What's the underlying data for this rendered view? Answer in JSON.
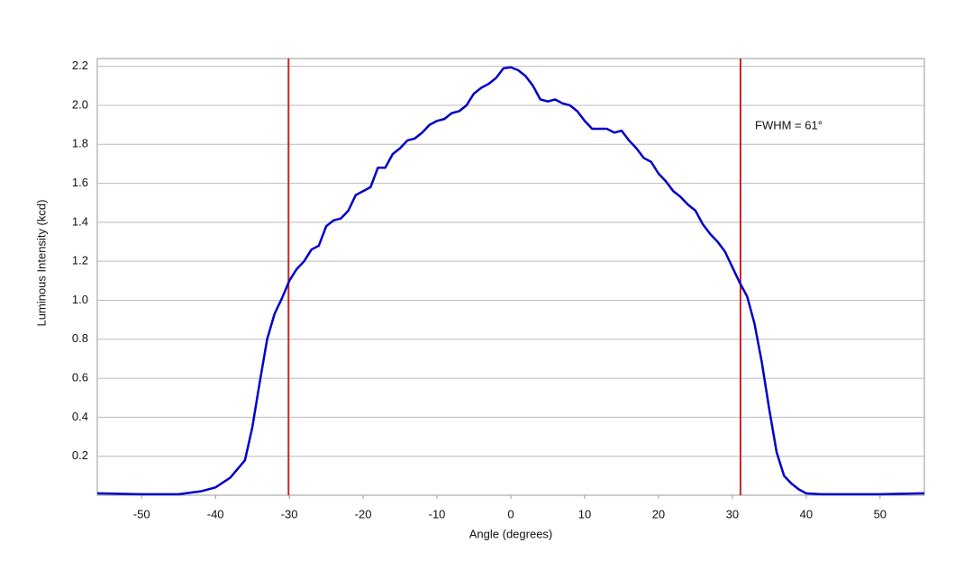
{
  "chart_data": {
    "type": "line",
    "xlabel": "Angle (degrees)",
    "ylabel": "Luminous Intensity (kcd)",
    "annotation": "FWHM = 61°",
    "x": [
      -56,
      -50,
      -45,
      -42,
      -40,
      -38,
      -36,
      -35,
      -34,
      -33,
      -32,
      -31,
      -30,
      -29,
      -28,
      -27,
      -26,
      -25,
      -24,
      -23,
      -22,
      -21,
      -20,
      -19,
      -18,
      -17,
      -16,
      -15,
      -14,
      -13,
      -12,
      -11,
      -10,
      -9,
      -8,
      -7,
      -6,
      -5,
      -4,
      -3,
      -2,
      -1,
      0,
      1,
      2,
      3,
      4,
      5,
      6,
      7,
      8,
      9,
      10,
      11,
      12,
      13,
      14,
      15,
      16,
      17,
      18,
      19,
      20,
      21,
      22,
      23,
      24,
      25,
      26,
      27,
      28,
      29,
      30,
      31,
      32,
      33,
      34,
      35,
      36,
      37,
      38,
      39,
      40,
      42,
      50,
      56
    ],
    "series": [
      {
        "color": "#0000cc",
        "values": [
          0.01,
          0.005,
          0.005,
          0.02,
          0.04,
          0.09,
          0.18,
          0.35,
          0.58,
          0.8,
          0.93,
          1.01,
          1.1,
          1.16,
          1.2,
          1.26,
          1.28,
          1.38,
          1.41,
          1.42,
          1.46,
          1.54,
          1.56,
          1.58,
          1.68,
          1.68,
          1.75,
          1.78,
          1.82,
          1.83,
          1.86,
          1.9,
          1.92,
          1.93,
          1.96,
          1.97,
          2.0,
          2.06,
          2.09,
          2.11,
          2.14,
          2.19,
          2.195,
          2.18,
          2.15,
          2.1,
          2.03,
          2.02,
          2.03,
          2.01,
          2.0,
          1.97,
          1.92,
          1.88,
          1.88,
          1.88,
          1.86,
          1.87,
          1.82,
          1.78,
          1.73,
          1.71,
          1.65,
          1.61,
          1.56,
          1.53,
          1.49,
          1.46,
          1.39,
          1.34,
          1.3,
          1.25,
          1.17,
          1.09,
          1.02,
          0.88,
          0.68,
          0.44,
          0.22,
          0.1,
          0.06,
          0.03,
          0.01,
          0.005,
          0.005,
          0.01
        ]
      }
    ],
    "markers": [
      -30.1,
      31.1
    ],
    "marker_color": "#cc2222",
    "xlim": [
      -56,
      56
    ],
    "ylim": [
      0,
      2.24
    ],
    "xticks": [
      -50,
      -40,
      -30,
      -20,
      -10,
      0,
      10,
      20,
      30,
      40,
      50
    ],
    "yticks": [
      0.2,
      0.4,
      0.6,
      0.8,
      {
        "value": 1,
        "label": "1.0"
      },
      1.2,
      1.4,
      1.6,
      1.8,
      {
        "value": 2,
        "label": "2.0"
      },
      2.2
    ],
    "grid": true
  }
}
